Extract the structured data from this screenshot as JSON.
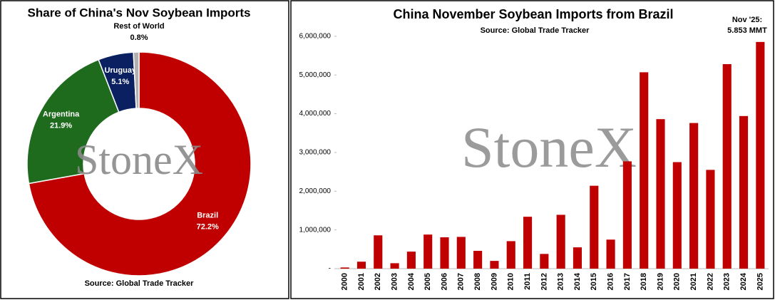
{
  "chart_data": [
    {
      "type": "pie",
      "title": "Share of China's Nov Soybean Imports",
      "source": "Source: Global Trade Tracker",
      "watermark": "StoneX",
      "categories": [
        "Brazil",
        "Argentina",
        "Uruguay",
        "Rest of World"
      ],
      "values": [
        72.2,
        21.9,
        5.1,
        0.8
      ],
      "value_labels": [
        "72.2%",
        "21.9%",
        "5.1%",
        "0.8%"
      ],
      "colors": [
        "#c00000",
        "#1e6b1e",
        "#0a2060",
        "#b0b0b0"
      ]
    },
    {
      "type": "bar",
      "title": "China November Soybean Imports from Brazil",
      "source": "Source: Global Trade Tracker",
      "watermark": "StoneX",
      "annotation": [
        "Nov '25:",
        "5.853 MMT"
      ],
      "categories": [
        "2000",
        "2001",
        "2002",
        "2003",
        "2004",
        "2005",
        "2006",
        "2007",
        "2008",
        "2009",
        "2010",
        "2011",
        "2012",
        "2013",
        "2014",
        "2015",
        "2016",
        "2017",
        "2018",
        "2019",
        "2020",
        "2021",
        "2022",
        "2023",
        "2024",
        "2025"
      ],
      "values": [
        30000,
        180000,
        860000,
        140000,
        440000,
        880000,
        810000,
        820000,
        460000,
        200000,
        710000,
        1340000,
        380000,
        1390000,
        550000,
        2140000,
        750000,
        2770000,
        5070000,
        3860000,
        2750000,
        3760000,
        2550000,
        5280000,
        3940000,
        5853000
      ],
      "color": "#c00000",
      "ylim": [
        0,
        6200000
      ],
      "yticks": [
        {
          "value": 0,
          "label": "-"
        },
        {
          "value": 1000000,
          "label": "1,000,000"
        },
        {
          "value": 2000000,
          "label": "2,000,000"
        },
        {
          "value": 3000000,
          "label": "3,000,000"
        },
        {
          "value": 4000000,
          "label": "4,000,000"
        },
        {
          "value": 5000000,
          "label": "5,000,000"
        },
        {
          "value": 6000000,
          "label": "6,000,000"
        }
      ],
      "grid": false
    }
  ]
}
